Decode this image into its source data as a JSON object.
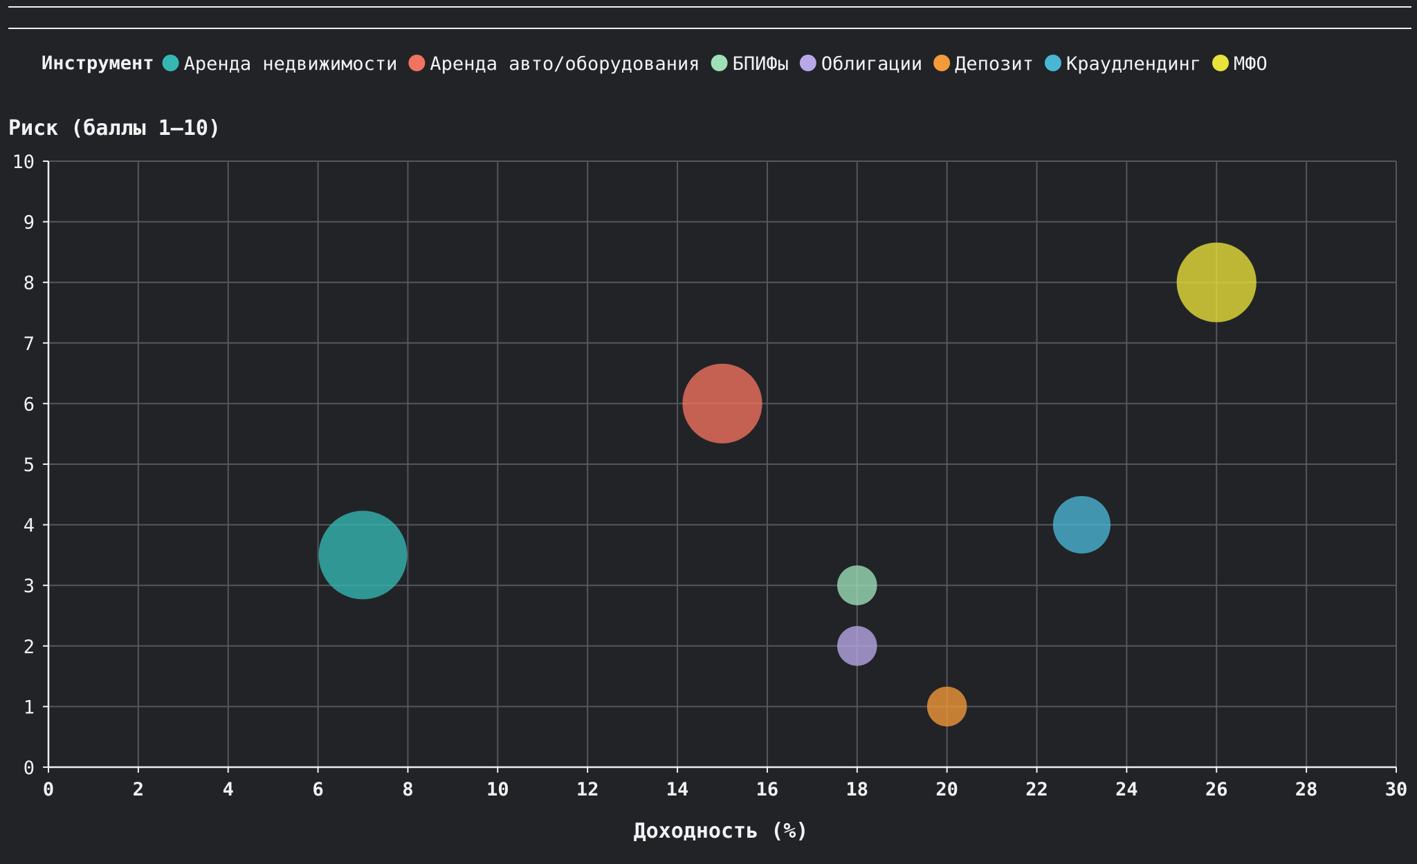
{
  "chart_data": {
    "type": "scatter",
    "legend": {
      "title": "Инструмент",
      "placement": "top"
    },
    "xlabel": "Доходность (%)",
    "ylabel": "Риск (баллы 1–10)",
    "xlim": [
      0,
      30
    ],
    "ylim": [
      0,
      10
    ],
    "xticks": [
      0,
      2,
      4,
      6,
      8,
      10,
      12,
      14,
      16,
      18,
      20,
      22,
      24,
      26,
      28,
      30
    ],
    "yticks": [
      0,
      1,
      2,
      3,
      4,
      5,
      6,
      7,
      8,
      9,
      10
    ],
    "grid": true,
    "series": [
      {
        "name": "Аренда недвижимости",
        "color": "#35b8b4",
        "x": 7,
        "y": 3.5,
        "size": 1.0
      },
      {
        "name": "Аренда авто/оборудования",
        "color": "#f2735f",
        "x": 15,
        "y": 6,
        "size": 0.9
      },
      {
        "name": "БПИФы",
        "color": "#9ee0b8",
        "x": 18,
        "y": 3,
        "size": 0.45
      },
      {
        "name": "Облигации",
        "color": "#b9a8e8",
        "x": 18,
        "y": 2,
        "size": 0.45
      },
      {
        "name": "Депозит",
        "color": "#f39a3a",
        "x": 20,
        "y": 1,
        "size": 0.45
      },
      {
        "name": "Краудлендинг",
        "color": "#4ab6d6",
        "x": 23,
        "y": 4,
        "size": 0.65
      },
      {
        "name": "МФО",
        "color": "#e9e23a",
        "x": 26,
        "y": 8,
        "size": 0.9
      }
    ]
  }
}
